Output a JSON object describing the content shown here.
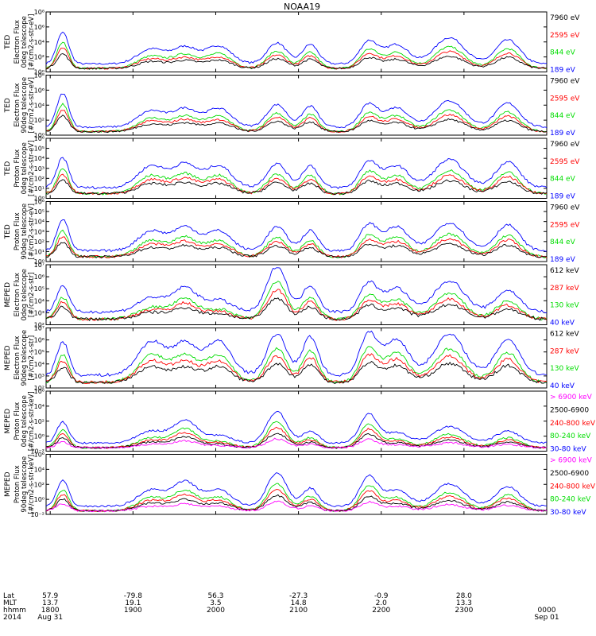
{
  "chart_data": {
    "type": "line",
    "title": "NOAA19",
    "x_range": [
      "2014-08-31 17:57",
      "2014-09-01 00:00"
    ],
    "x_ticks": [
      {
        "time": "1800",
        "lat": "57.9",
        "mlt": "13.7",
        "date": "Aug 31"
      },
      {
        "time": "1900",
        "lat": "-79.8",
        "mlt": "19.1",
        "date": ""
      },
      {
        "time": "2000",
        "lat": "56.3",
        "mlt": "3.5",
        "date": ""
      },
      {
        "time": "2100",
        "lat": "-27.3",
        "mlt": "14.8",
        "date": ""
      },
      {
        "time": "2200",
        "lat": "-0.9",
        "mlt": "2.0",
        "date": ""
      },
      {
        "time": "2300",
        "lat": "28.0",
        "mlt": "13.3",
        "date": ""
      },
      {
        "time": "0000",
        "lat": "",
        "mlt": "",
        "date": "Sep 01"
      }
    ],
    "row_labels": [
      "Lat",
      "MLT",
      "hhmm",
      "2014"
    ],
    "panels": [
      {
        "instrument": "TED",
        "ylabel": [
          "Electron Flux",
          "0deg telescope",
          "[#/cm2-s-str-eV]"
        ],
        "y_log_min": 0,
        "y_log_max": 8,
        "y_tick_exps": [
          0,
          2,
          4,
          6,
          8
        ],
        "channels": [
          {
            "label": "7960 eV",
            "color": "#000000"
          },
          {
            "label": "2595 eV",
            "color": "#ff0000"
          },
          {
            "label": "844 eV",
            "color": "#00dd00"
          },
          {
            "label": "189 eV",
            "color": "#0000ff"
          }
        ],
        "bursts": [
          [
            0.6,
            0.6,
            4.2
          ],
          [
            3.8,
            1.4,
            2.0
          ],
          [
            5.0,
            1.2,
            2.2
          ],
          [
            6.2,
            1.3,
            2.4
          ],
          [
            8.3,
            1.0,
            2.8
          ],
          [
            9.5,
            0.8,
            2.6
          ],
          [
            11.6,
            0.9,
            3.0
          ],
          [
            12.6,
            1.2,
            2.6
          ],
          [
            14.5,
            1.5,
            3.5
          ],
          [
            16.6,
            1.2,
            3.2
          ]
        ]
      },
      {
        "instrument": "TED",
        "ylabel": [
          "Electron Flux",
          "90deg telescope",
          "[#/cm2-s-str-eV]"
        ],
        "y_log_min": 0,
        "y_log_max": 8,
        "y_tick_exps": [
          0,
          2,
          4,
          6,
          8
        ],
        "channels": [
          {
            "label": "7960 eV",
            "color": "#000000"
          },
          {
            "label": "2595 eV",
            "color": "#ff0000"
          },
          {
            "label": "844 eV",
            "color": "#00dd00"
          },
          {
            "label": "189 eV",
            "color": "#0000ff"
          }
        ],
        "bursts": [
          [
            0.6,
            0.6,
            4.5
          ],
          [
            3.8,
            1.4,
            2.2
          ],
          [
            5.0,
            1.2,
            2.4
          ],
          [
            6.2,
            1.3,
            2.5
          ],
          [
            8.3,
            1.0,
            3.0
          ],
          [
            9.5,
            0.8,
            2.8
          ],
          [
            11.6,
            0.9,
            3.0
          ],
          [
            12.6,
            1.2,
            2.6
          ],
          [
            14.5,
            1.5,
            3.5
          ],
          [
            16.6,
            1.2,
            3.2
          ]
        ]
      },
      {
        "instrument": "TED",
        "ylabel": [
          "Proton Flux",
          "0deg telescope",
          "[#/cm2-s-str-eV]"
        ],
        "y_log_min": 0,
        "y_log_max": 6,
        "y_tick_exps": [
          0,
          1,
          2,
          3,
          4,
          5,
          6
        ],
        "channels": [
          {
            "label": "7960 eV",
            "color": "#000000"
          },
          {
            "label": "2595 eV",
            "color": "#ff0000"
          },
          {
            "label": "844 eV",
            "color": "#00dd00"
          },
          {
            "label": "189 eV",
            "color": "#0000ff"
          }
        ],
        "bursts": [
          [
            0.6,
            0.6,
            3.0
          ],
          [
            3.8,
            1.4,
            2.2
          ],
          [
            5.0,
            1.2,
            2.3
          ],
          [
            6.2,
            1.3,
            2.2
          ],
          [
            8.3,
            1.0,
            2.4
          ],
          [
            9.5,
            0.8,
            2.2
          ],
          [
            11.6,
            0.9,
            2.6
          ],
          [
            12.6,
            1.2,
            2.2
          ],
          [
            14.5,
            1.5,
            2.8
          ],
          [
            16.6,
            1.2,
            2.6
          ]
        ]
      },
      {
        "instrument": "TED",
        "ylabel": [
          "Proton Flux",
          "90deg telescope",
          "[#/cm2-s-str-eV]"
        ],
        "y_log_min": 0,
        "y_log_max": 6,
        "y_tick_exps": [
          0,
          1,
          2,
          3,
          4,
          5,
          6
        ],
        "channels": [
          {
            "label": "7960 eV",
            "color": "#000000"
          },
          {
            "label": "2595 eV",
            "color": "#ff0000"
          },
          {
            "label": "844 eV",
            "color": "#00dd00"
          },
          {
            "label": "189 eV",
            "color": "#0000ff"
          }
        ],
        "bursts": [
          [
            0.6,
            0.6,
            3.2
          ],
          [
            3.8,
            1.4,
            2.0
          ],
          [
            5.0,
            1.2,
            2.3
          ],
          [
            6.2,
            1.3,
            2.0
          ],
          [
            8.3,
            1.0,
            2.4
          ],
          [
            9.5,
            0.8,
            2.0
          ],
          [
            11.6,
            0.9,
            2.6
          ],
          [
            12.6,
            1.2,
            2.4
          ],
          [
            14.5,
            1.5,
            2.8
          ],
          [
            16.6,
            1.2,
            2.6
          ]
        ]
      },
      {
        "instrument": "MEPED",
        "ylabel": [
          "Electron Flux",
          "0deg telescope",
          "[#/cm2-s-str]"
        ],
        "y_log_min": 2,
        "y_log_max": 7,
        "y_tick_exps": [
          2,
          3,
          4,
          5,
          6,
          7
        ],
        "channels": [
          {
            "label": "612 keV",
            "color": "#000000"
          },
          {
            "label": "287 keV",
            "color": "#ff0000"
          },
          {
            "label": "130 keV",
            "color": "#00dd00"
          },
          {
            "label": "40 keV",
            "color": "#0000ff"
          }
        ],
        "bursts": [
          [
            0.6,
            0.6,
            2.2
          ],
          [
            3.8,
            1.4,
            1.2
          ],
          [
            5.0,
            1.2,
            2.0
          ],
          [
            6.2,
            1.3,
            1.0
          ],
          [
            8.3,
            1.0,
            3.8
          ],
          [
            9.5,
            0.8,
            2.2
          ],
          [
            11.6,
            0.9,
            2.4
          ],
          [
            12.6,
            1.2,
            2.0
          ],
          [
            14.5,
            1.5,
            2.6
          ],
          [
            16.6,
            1.2,
            1.8
          ]
        ]
      },
      {
        "instrument": "MEPED",
        "ylabel": [
          "Electron Flux",
          "90deg telescope",
          "[#/cm2-s-str]"
        ],
        "y_log_min": 2,
        "y_log_max": 7,
        "y_tick_exps": [
          2,
          3,
          4,
          5,
          6,
          7
        ],
        "channels": [
          {
            "label": "612 keV",
            "color": "#000000"
          },
          {
            "label": "287 keV",
            "color": "#ff0000"
          },
          {
            "label": "130 keV",
            "color": "#00dd00"
          },
          {
            "label": "40 keV",
            "color": "#0000ff"
          }
        ],
        "bursts": [
          [
            0.6,
            0.6,
            2.8
          ],
          [
            3.8,
            1.4,
            2.8
          ],
          [
            5.0,
            1.2,
            2.6
          ],
          [
            6.2,
            1.3,
            2.8
          ],
          [
            8.3,
            1.0,
            3.4
          ],
          [
            9.5,
            0.8,
            3.2
          ],
          [
            11.6,
            0.9,
            3.4
          ],
          [
            12.6,
            1.2,
            3.0
          ],
          [
            14.5,
            1.5,
            3.4
          ],
          [
            16.6,
            1.2,
            3.0
          ]
        ]
      },
      {
        "instrument": "MEPED",
        "ylabel": [
          "Proton Flux",
          "0deg telescope",
          "[#/cm2-s-str-keV]"
        ],
        "y_log_min": -2,
        "y_log_max": 6,
        "y_tick_exps": [
          -2,
          0,
          2,
          4,
          6
        ],
        "channels": [
          {
            "label": "> 6900 keV",
            "color": "#ff00ff"
          },
          {
            "label": "2500-6900",
            "color": "#000000"
          },
          {
            "label": "240-800 keV",
            "color": "#ff0000"
          },
          {
            "label": "80-240 keV",
            "color": "#00dd00"
          },
          {
            "label": "30-80 keV",
            "color": "#0000ff"
          }
        ],
        "bursts": [
          [
            0.6,
            0.6,
            2.8
          ],
          [
            3.8,
            1.4,
            1.6
          ],
          [
            5.0,
            1.2,
            3.0
          ],
          [
            6.2,
            1.3,
            1.0
          ],
          [
            8.3,
            1.0,
            4.2
          ],
          [
            9.5,
            0.8,
            1.6
          ],
          [
            11.6,
            0.9,
            3.8
          ],
          [
            12.6,
            1.2,
            1.4
          ],
          [
            14.5,
            1.5,
            2.2
          ],
          [
            16.6,
            1.2,
            1.6
          ]
        ]
      },
      {
        "instrument": "MEPED",
        "ylabel": [
          "Proton Flux",
          "90deg telescope",
          "[#/cm2-s-str-keV]"
        ],
        "y_log_min": -2,
        "y_log_max": 6,
        "y_tick_exps": [
          -2,
          0,
          2,
          4,
          6
        ],
        "channels": [
          {
            "label": "> 6900 keV",
            "color": "#ff00ff"
          },
          {
            "label": "2500-6900",
            "color": "#000000"
          },
          {
            "label": "240-800 keV",
            "color": "#ff0000"
          },
          {
            "label": "80-240 keV",
            "color": "#00dd00"
          },
          {
            "label": "30-80 keV",
            "color": "#0000ff"
          }
        ],
        "bursts": [
          [
            0.6,
            0.6,
            3.4
          ],
          [
            3.8,
            1.4,
            2.2
          ],
          [
            5.0,
            1.2,
            3.2
          ],
          [
            6.2,
            1.3,
            2.2
          ],
          [
            8.3,
            1.0,
            4.4
          ],
          [
            9.5,
            0.8,
            2.4
          ],
          [
            11.6,
            0.9,
            4.0
          ],
          [
            12.6,
            1.2,
            2.2
          ],
          [
            14.5,
            1.5,
            3.0
          ],
          [
            16.6,
            1.2,
            2.6
          ]
        ]
      }
    ]
  }
}
